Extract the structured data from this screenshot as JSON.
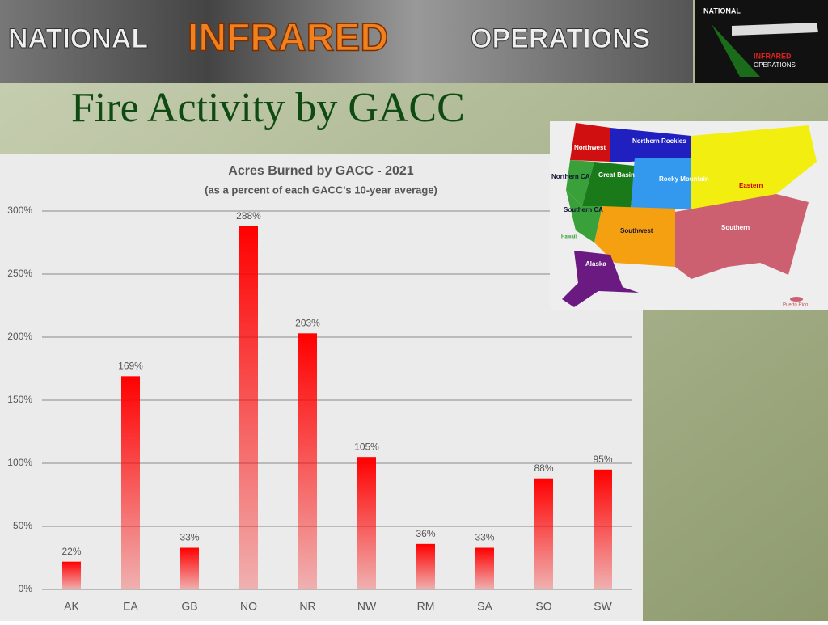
{
  "banner": {
    "words": [
      "NATIONAL",
      "INFRARED",
      "OPERATIONS"
    ],
    "logo": [
      "NATIONAL",
      "INFRARED",
      "OPERATIONS"
    ]
  },
  "slide_title": "Fire Activity by GACC",
  "map": {
    "regions": [
      "Northwest",
      "Northern Rockies",
      "Northern CA",
      "Great Basin",
      "Rocky Mountain",
      "Eastern",
      "Southern CA",
      "Southwest",
      "Southern",
      "Hawaii",
      "Alaska",
      "Puerto Rico"
    ]
  },
  "chart_data": {
    "type": "bar",
    "title": "Acres Burned by GACC - 2021",
    "subtitle": "(as a percent of each GACC's 10-year average)",
    "categories": [
      "AK",
      "EA",
      "GB",
      "NO",
      "NR",
      "NW",
      "RM",
      "SA",
      "SO",
      "SW"
    ],
    "values": [
      22,
      169,
      33,
      288,
      203,
      105,
      36,
      33,
      88,
      95
    ],
    "value_labels": [
      "22%",
      "169%",
      "33%",
      "288%",
      "203%",
      "105%",
      "36%",
      "33%",
      "88%",
      "95%"
    ],
    "color": "#ff0000",
    "ylim": [
      0,
      300
    ],
    "yticks": [
      {
        "value": 0,
        "label": "0%"
      },
      {
        "value": 50,
        "label": "50%"
      },
      {
        "value": 100,
        "label": "100%"
      },
      {
        "value": 150,
        "label": "150%"
      },
      {
        "value": 200,
        "label": "200%"
      },
      {
        "value": 250,
        "label": "250%"
      },
      {
        "value": 300,
        "label": "300%"
      }
    ],
    "grid": true
  }
}
